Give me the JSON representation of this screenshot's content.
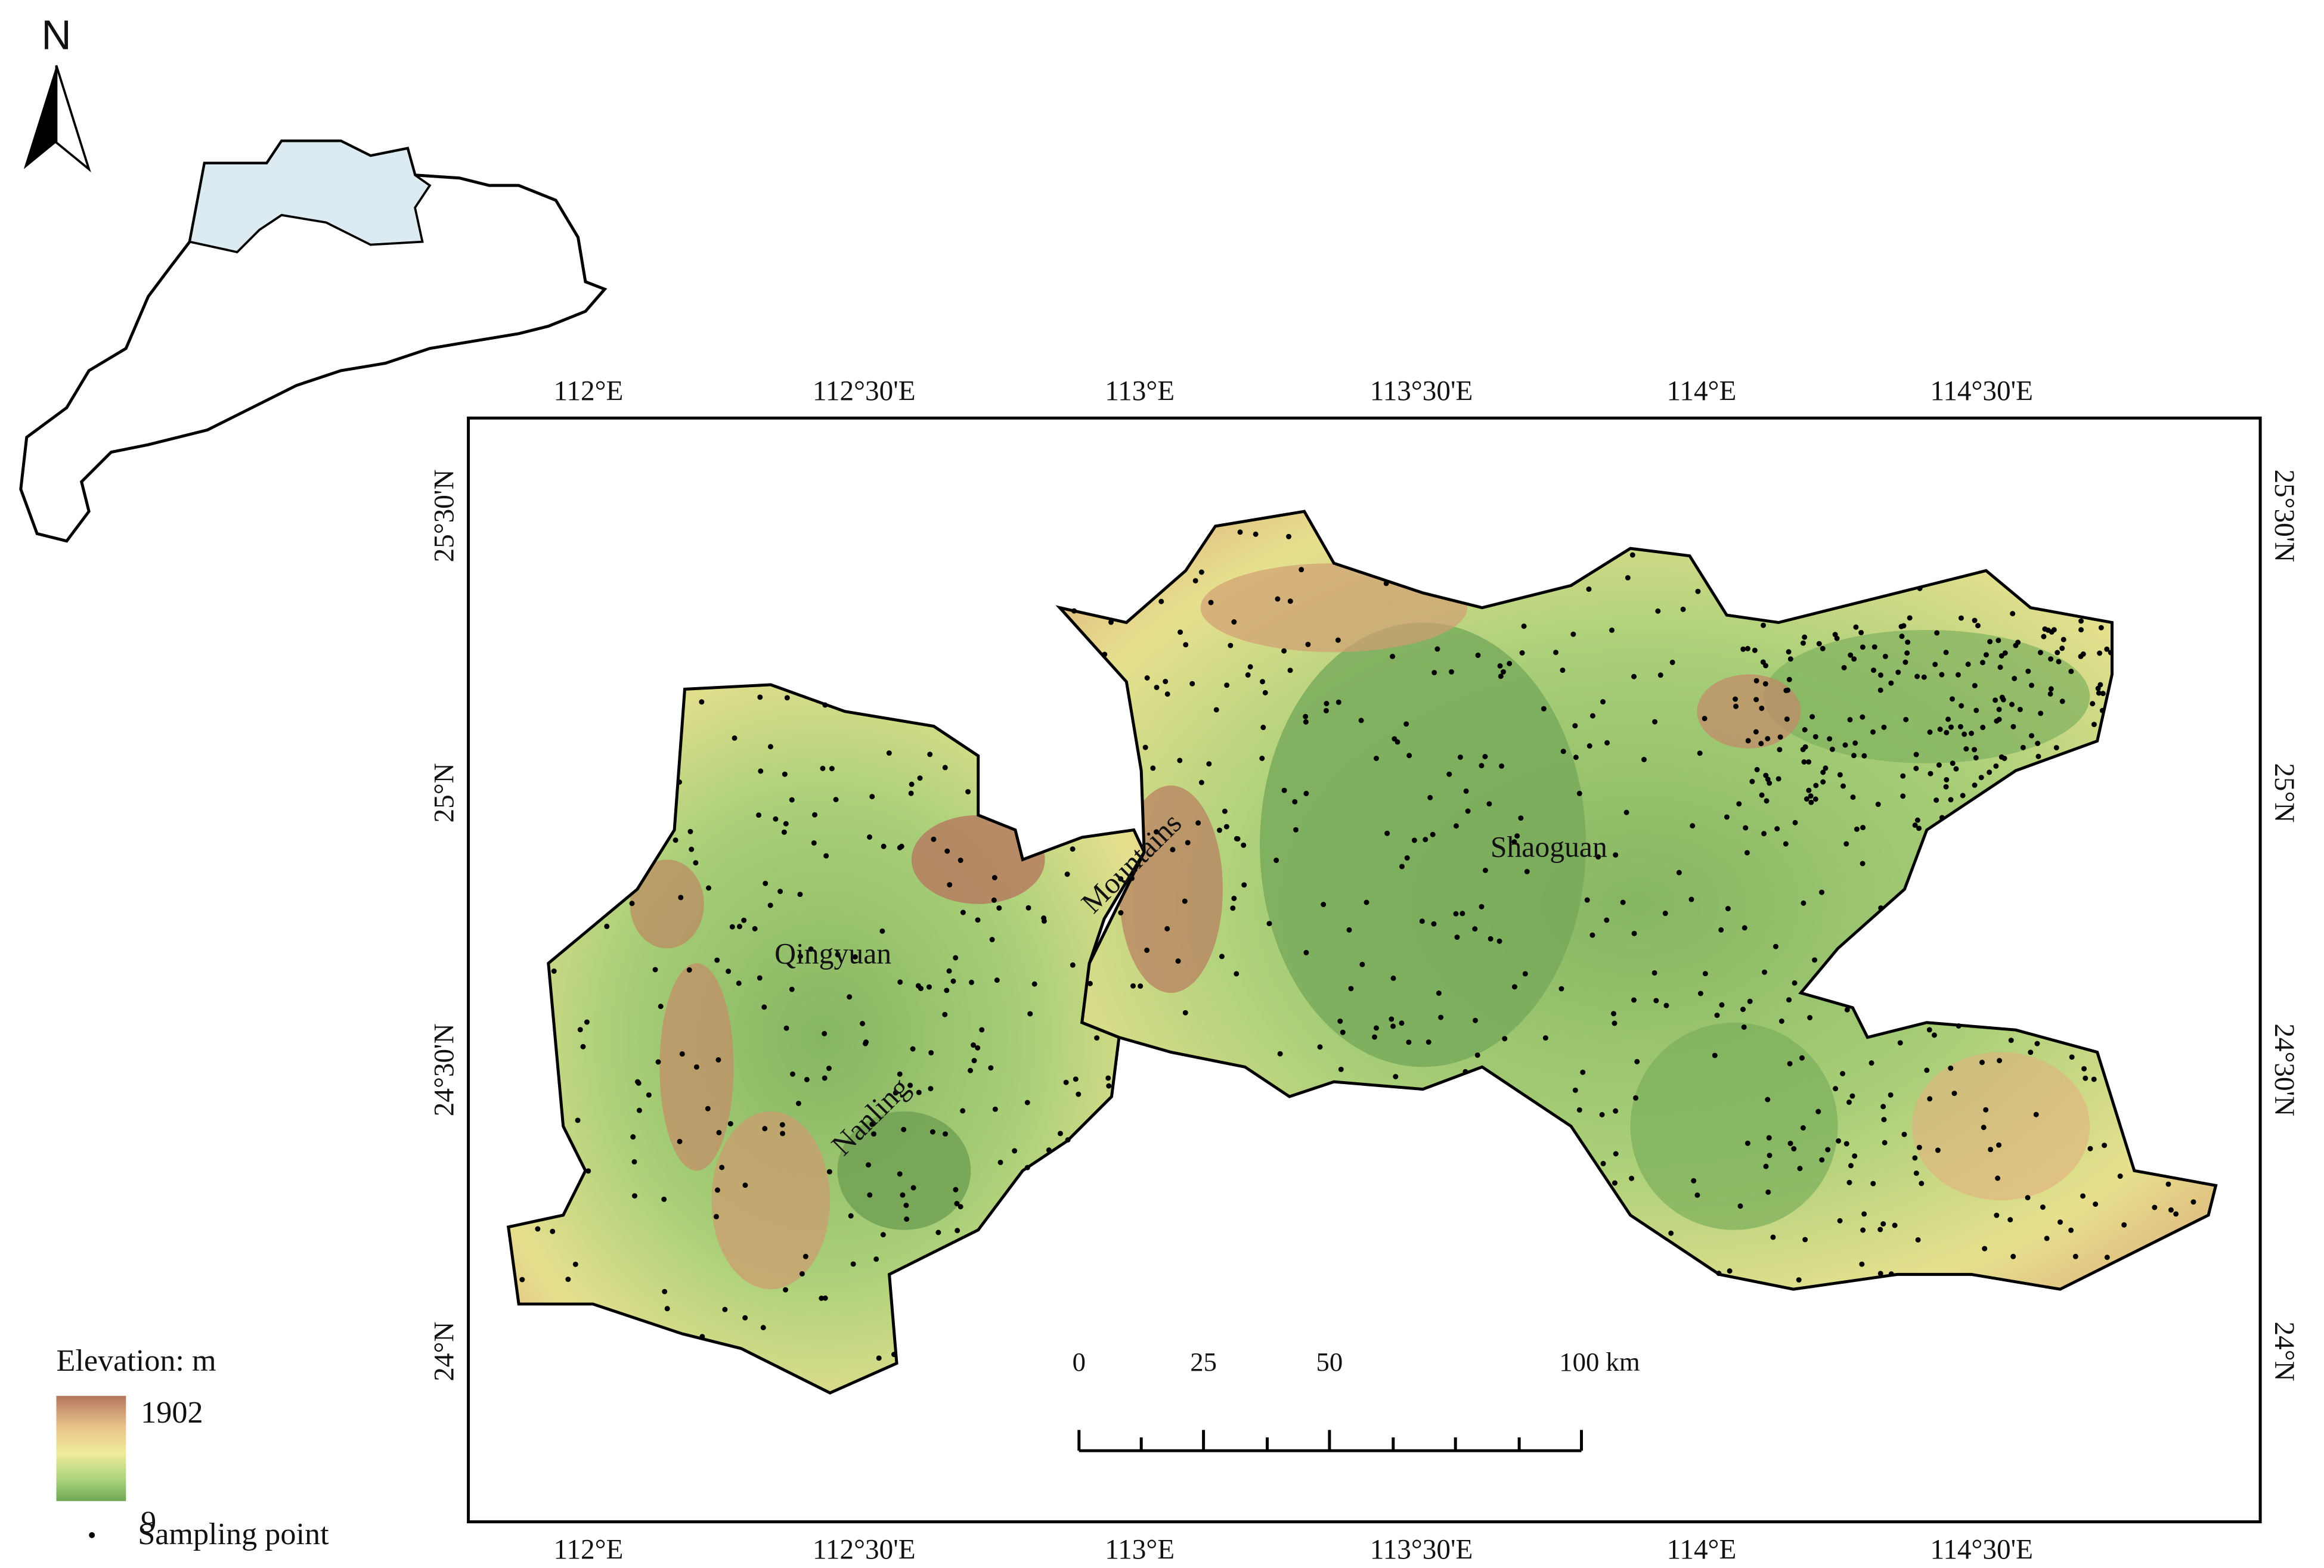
{
  "north_arrow": {
    "label": "N"
  },
  "axes": {
    "longitude_labels": [
      "112°E",
      "112°30'E",
      "113°E",
      "113°30'E",
      "114°E",
      "114°30'E"
    ],
    "latitude_labels": [
      "25°30'N",
      "25°N",
      "24°30'N",
      "24°N"
    ]
  },
  "places": {
    "qingyuan": "Qingyuan",
    "shaoguan": "Shaoguan",
    "nanling": "Nanling",
    "mountains": "Mountains"
  },
  "scale_bar": {
    "labels": [
      "0",
      "25",
      "50",
      "100 km"
    ]
  },
  "legend": {
    "title": "Elevation: m",
    "max_label": "1902",
    "min_label": "9",
    "point_label": "Sampling point"
  }
}
